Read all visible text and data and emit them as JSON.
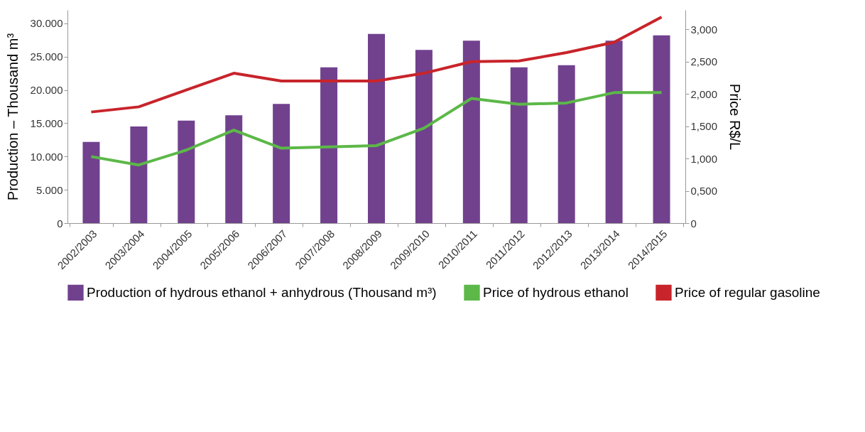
{
  "chart_data": {
    "type": "bar",
    "ylabel": "Production – Thousand m³",
    "y2label": "Price R$/L",
    "categories": [
      "2002/2003",
      "2003/2004",
      "2004/2005",
      "2005/2006",
      "2006/2007",
      "2007/2008",
      "2008/2009",
      "2009/2010",
      "2010/2011",
      "2011/2012",
      "2012/2013",
      "2013/2014",
      "2014/2015"
    ],
    "series": [
      {
        "name": "Production of hydrous ethanol + anhydrous (Thousand m³)",
        "color": "#71418e",
        "values": [
          12200,
          14500,
          15400,
          16200,
          17900,
          23400,
          28400,
          26000,
          27400,
          23400,
          23700,
          27400,
          28200
        ]
      },
      {
        "name": "Price of hydrous ethanol",
        "type": "line",
        "axis": "y2",
        "color": "#5cb848",
        "values": [
          1.03,
          0.9,
          1.13,
          1.44,
          1.16,
          1.18,
          1.2,
          1.47,
          1.93,
          1.84,
          1.86,
          2.02,
          2.02
        ]
      },
      {
        "name": "Price of regular gasoline",
        "type": "line",
        "axis": "y2",
        "color": "#c8242b",
        "values": [
          1.72,
          1.8,
          2.06,
          2.32,
          2.2,
          2.2,
          2.2,
          2.32,
          2.5,
          2.51,
          2.64,
          2.8,
          3.19
        ]
      }
    ],
    "ylim": [
      0,
      32000
    ],
    "yticks": [
      0,
      {
        "value": 5000,
        "label": "5.000"
      },
      {
        "value": 10000,
        "label": "10.000"
      },
      {
        "value": 15000,
        "label": "15.000"
      },
      {
        "value": 20000,
        "label": "20.000"
      },
      {
        "value": 25000,
        "label": "25.000"
      },
      {
        "value": 30000,
        "label": "30.000"
      }
    ],
    "y2lim": [
      0,
      3.3
    ],
    "y2ticks": [
      0,
      {
        "value": 0.5,
        "label": "0,500"
      },
      {
        "value": 1,
        "label": "1,000"
      },
      {
        "value": 1.5,
        "label": "1,500"
      },
      {
        "value": 2,
        "label": "2,000"
      },
      {
        "value": 2.5,
        "label": "2,500"
      },
      {
        "value": 3,
        "label": "3,000"
      }
    ],
    "legend": "bottom"
  }
}
